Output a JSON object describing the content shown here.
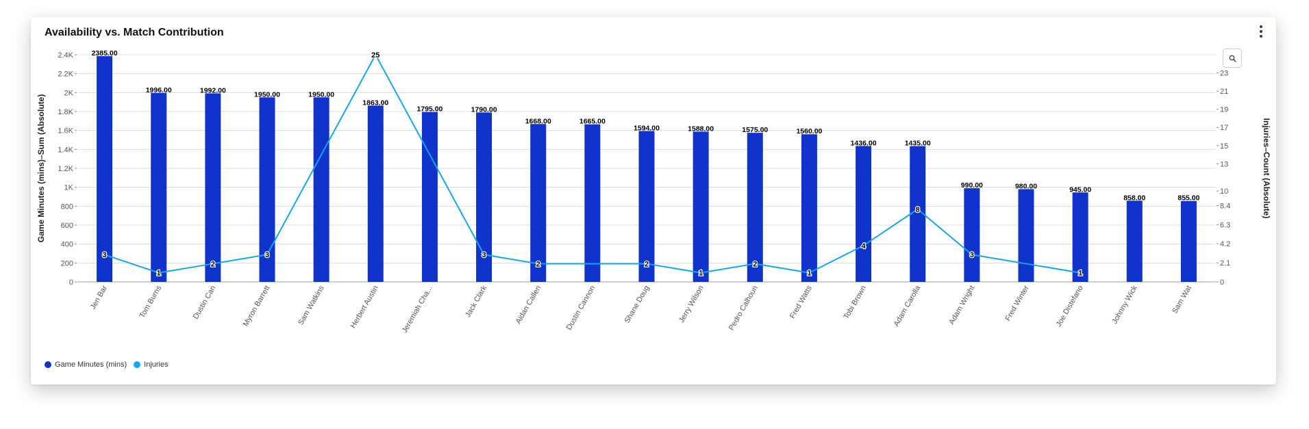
{
  "title": "Availability vs. Match Contribution",
  "chart_data": {
    "type": "bar",
    "title": "Availability vs. Match Contribution",
    "categories": [
      "Jen Bar",
      "Tom Burns",
      "Dustin Can",
      "Myron Barrett",
      "Sam Watkins",
      "Herbert Austin",
      "Jeremiah Cha...",
      "Jack Clark",
      "Aidan Callen",
      "Dustin Cannon",
      "Shane Doug",
      "Jerry Wilson",
      "Pedro Calhoun",
      "Fred Watts",
      "Tobi Brown",
      "Adam Carolla",
      "Adam Wright",
      "Fred Winter",
      "Joe Distefano",
      "Johnny Wick",
      "Sam Wat"
    ],
    "series": [
      {
        "name": "Game Minutes (mins)",
        "type": "bar",
        "axis": "left",
        "color": "#1033cc",
        "values": [
          2385,
          1996,
          1992,
          1950,
          1950,
          1863,
          1795,
          1790,
          1668,
          1665,
          1594,
          1588,
          1575,
          1560,
          1436,
          1435,
          990,
          980,
          945,
          858,
          855
        ],
        "labels": [
          "2385.00",
          "1996.00",
          "1992.00",
          "1950.00",
          "1950.00",
          "1863.00",
          "1795.00",
          "1790.00",
          "1668.00",
          "1665.00",
          "1594.00",
          "1588.00",
          "1575.00",
          "1560.00",
          "1436.00",
          "1435.00",
          "990.00",
          "980.00",
          "945.00",
          "858.00",
          "855.00"
        ]
      },
      {
        "name": "Injuries",
        "type": "line",
        "axis": "right",
        "color": "#13a6ee",
        "values": [
          3,
          1,
          2,
          3,
          14,
          25,
          14,
          3,
          2,
          2,
          2,
          1,
          2,
          1,
          4,
          8,
          3,
          2,
          1,
          null,
          null
        ],
        "labels": [
          "3",
          "1",
          "2",
          "3",
          "",
          "25",
          "",
          "3",
          "2",
          "",
          "2",
          "1",
          "2",
          "1",
          "4",
          "8",
          "3",
          "",
          "1",
          "",
          ""
        ]
      }
    ],
    "ylabel": "Game Minutes (mins)–Sum (Absolute)",
    "y2label": "Injuries–Count (Absolute)",
    "ylim": [
      0,
      2400
    ],
    "y2lim": [
      0,
      25
    ],
    "yticks": [
      "0",
      "200",
      "400",
      "600",
      "800",
      "1K",
      "1.2K",
      "1.4K",
      "1.6K",
      "1.8K",
      "2K",
      "2.2K",
      "2.4K"
    ],
    "y2ticks": [
      "0",
      "2.1",
      "4.2",
      "6.3",
      "8.4",
      "10",
      "13",
      "15",
      "17",
      "19",
      "21",
      "23"
    ],
    "y2tick_values": [
      0,
      2.1,
      4.2,
      6.3,
      8.4,
      10,
      13,
      15,
      17,
      19,
      21,
      23
    ],
    "grid": true,
    "legend_position": "bottom-left"
  },
  "legend": [
    {
      "label": "Game Minutes (mins)",
      "color": "#1033cc"
    },
    {
      "label": "Injuries",
      "color": "#13a6ee"
    }
  ],
  "icons": {
    "menu": "kebab-menu-icon",
    "zoom": "search-icon"
  }
}
